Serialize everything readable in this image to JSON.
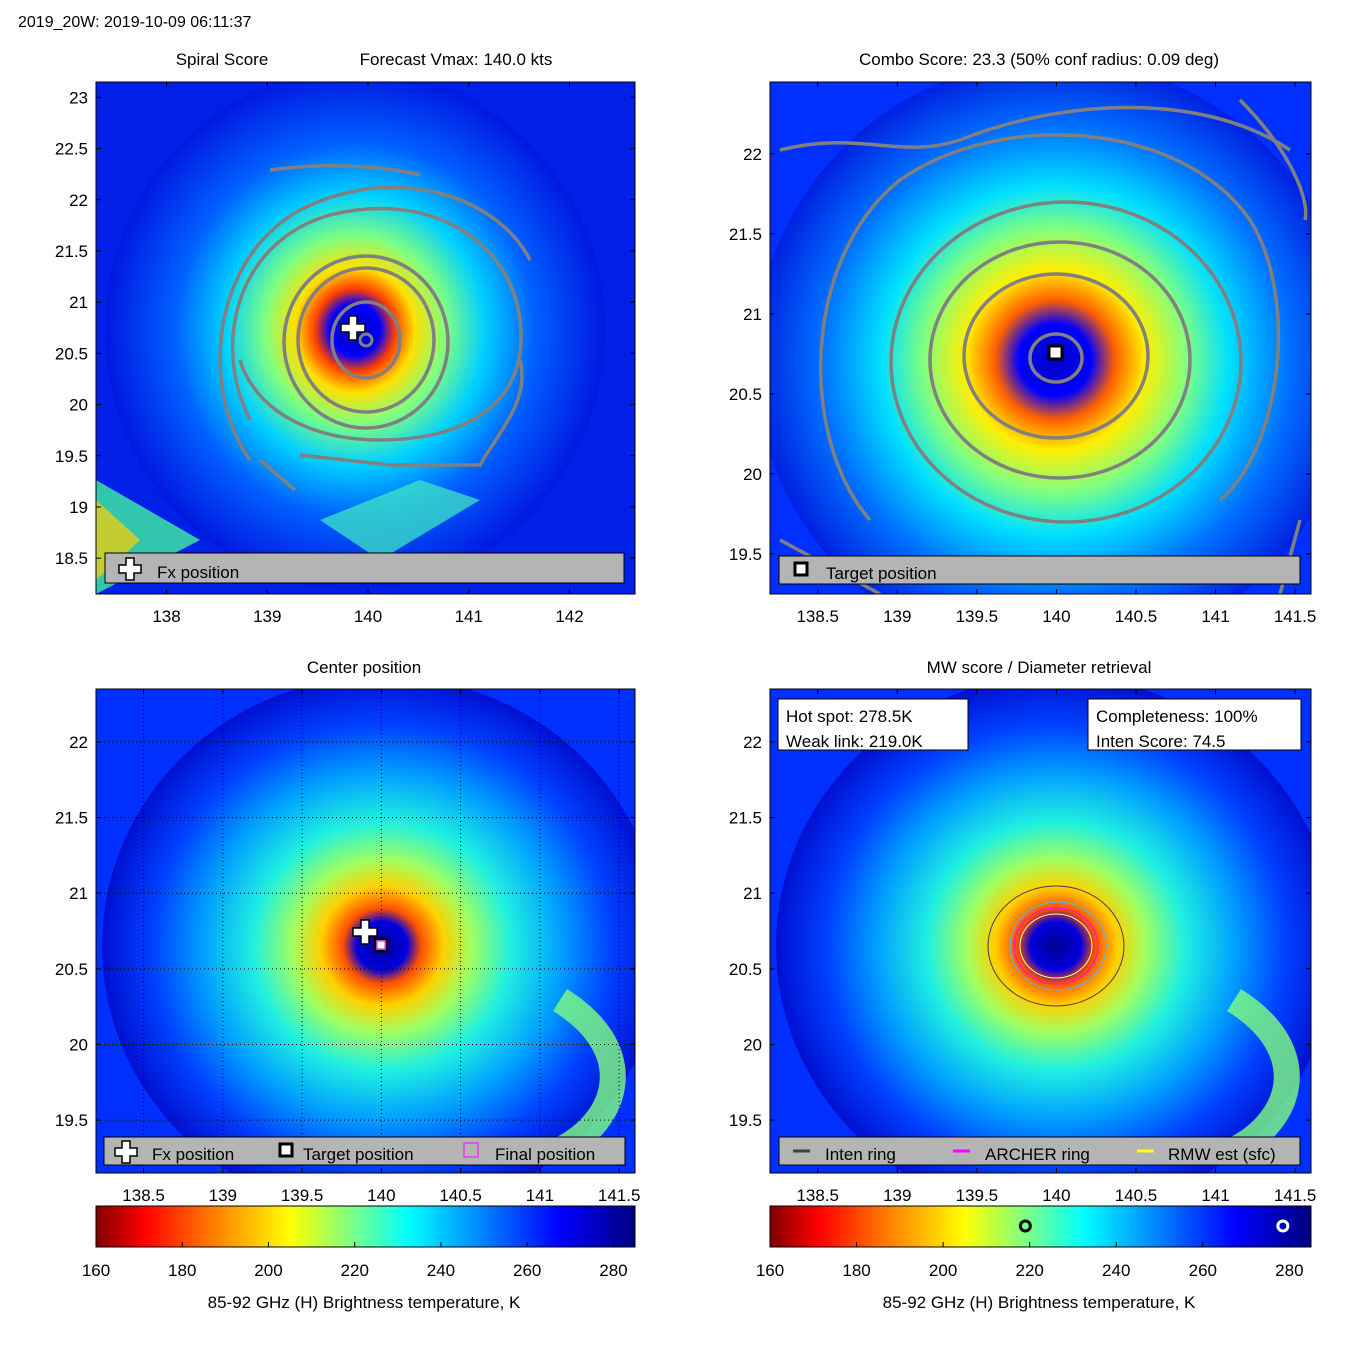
{
  "figure_title": "2019_20W: 2019-10-09 06:11:37",
  "colors": {
    "colormap": [
      "#800000",
      "#ff0000",
      "#ff8000",
      "#ffff00",
      "#80ff80",
      "#00ffff",
      "#0080ff",
      "#0000ff",
      "#000080"
    ],
    "contour": "#808080",
    "legend_bg": "#b4b4b4",
    "archer_ring": "#ff00ff",
    "rmw_ring": "#ffff00",
    "inten_ring": "#404040"
  },
  "chart_data": [
    {
      "type": "heatmap",
      "panel": "spiral",
      "title_left": "Spiral Score",
      "title_right": "Forecast Vmax: 140.0 kts",
      "xlim": [
        137.3,
        142.65
      ],
      "ylim": [
        18.15,
        23.15
      ],
      "xticks": [
        "138",
        "139",
        "140",
        "141",
        "142"
      ],
      "yticks": [
        "18.5",
        "19",
        "19.5",
        "20",
        "20.5",
        "21",
        "21.5",
        "22",
        "22.5",
        "23"
      ],
      "fx_position": [
        139.88,
        20.74
      ],
      "center_marker": [
        140.0,
        20.62
      ],
      "legend": [
        "Fx position"
      ]
    },
    {
      "type": "heatmap",
      "panel": "combo",
      "title": "Combo Score: 23.3  (50% conf radius: 0.09 deg)",
      "xlim": [
        138.2,
        141.6
      ],
      "ylim": [
        19.25,
        22.45
      ],
      "xticks": [
        "138.5",
        "139",
        "139.5",
        "140",
        "140.5",
        "141",
        "141.5"
      ],
      "yticks": [
        "19.5",
        "20",
        "20.5",
        "21",
        "21.5",
        "22"
      ],
      "target_position": [
        140.0,
        20.64
      ],
      "legend": [
        "Target position"
      ]
    },
    {
      "type": "heatmap",
      "panel": "center",
      "title": "Center position",
      "xlim": [
        138.2,
        141.6
      ],
      "ylim": [
        19.15,
        22.35
      ],
      "xticks": [
        "138.5",
        "139",
        "139.5",
        "140",
        "140.5",
        "141",
        "141.5"
      ],
      "yticks": [
        "19.5",
        "20",
        "20.5",
        "21",
        "21.5",
        "22"
      ],
      "fx_position": [
        139.88,
        20.72
      ],
      "target_position": [
        140.0,
        20.63
      ],
      "final_position": [
        140.0,
        20.63
      ],
      "legend": [
        "Fx position",
        "Target position",
        "Final position"
      ]
    },
    {
      "type": "heatmap",
      "panel": "mw",
      "title": "MW score / Diameter retrieval",
      "xlim": [
        138.2,
        141.6
      ],
      "ylim": [
        19.15,
        22.35
      ],
      "xticks": [
        "138.5",
        "139",
        "139.5",
        "140",
        "140.5",
        "141",
        "141.5"
      ],
      "yticks": [
        "19.5",
        "20",
        "20.5",
        "21",
        "21.5",
        "22"
      ],
      "hot_spot_label": "Hot spot: 278.5K",
      "weak_link_label": "Weak link: 219.0K",
      "completeness_label": "Completeness: 100%",
      "inten_score_label": "Inten Score: 74.5",
      "hot_spot_K": 278.5,
      "weak_link_K": 219.0,
      "legend": [
        "Inten ring",
        "ARCHER ring",
        "RMW est (sfc)"
      ]
    }
  ],
  "colorbar": {
    "ticks": [
      "160",
      "180",
      "200",
      "220",
      "240",
      "260",
      "280"
    ],
    "range": [
      160,
      285
    ],
    "label": "85-92 GHz (H) Brightness temperature, K"
  }
}
